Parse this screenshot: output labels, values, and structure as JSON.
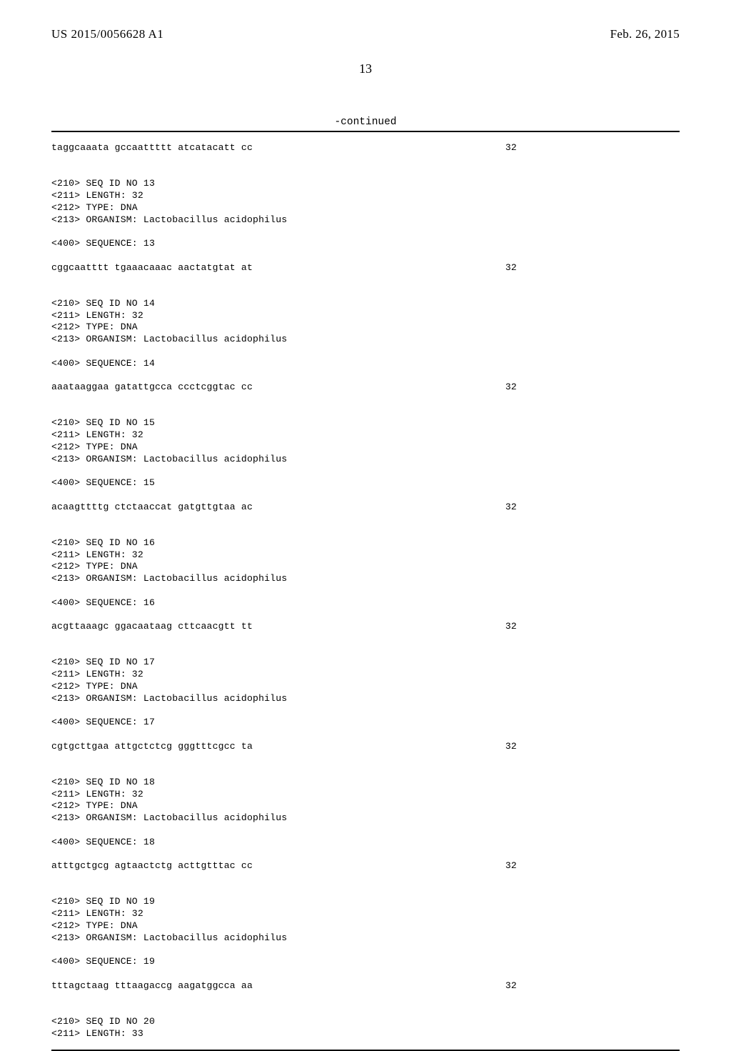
{
  "header": {
    "publication_number": "US 2015/0056628 A1",
    "publication_date": "Feb. 26, 2015"
  },
  "page_number": "13",
  "continued_label": "-continued",
  "entries": [
    {
      "pre_meta": [],
      "sequence": "taggcaaata gccaattttt atcatacatt cc",
      "length": "32"
    },
    {
      "pre_meta": [
        "<210> SEQ ID NO 13",
        "<211> LENGTH: 32",
        "<212> TYPE: DNA",
        "<213> ORGANISM: Lactobacillus acidophilus",
        "",
        "<400> SEQUENCE: 13"
      ],
      "sequence": "cggcaatttt tgaaacaaac aactatgtat at",
      "length": "32"
    },
    {
      "pre_meta": [
        "<210> SEQ ID NO 14",
        "<211> LENGTH: 32",
        "<212> TYPE: DNA",
        "<213> ORGANISM: Lactobacillus acidophilus",
        "",
        "<400> SEQUENCE: 14"
      ],
      "sequence": "aaataaggaa gatattgcca ccctcggtac cc",
      "length": "32"
    },
    {
      "pre_meta": [
        "<210> SEQ ID NO 15",
        "<211> LENGTH: 32",
        "<212> TYPE: DNA",
        "<213> ORGANISM: Lactobacillus acidophilus",
        "",
        "<400> SEQUENCE: 15"
      ],
      "sequence": "acaagttttg ctctaaccat gatgttgtaa ac",
      "length": "32"
    },
    {
      "pre_meta": [
        "<210> SEQ ID NO 16",
        "<211> LENGTH: 32",
        "<212> TYPE: DNA",
        "<213> ORGANISM: Lactobacillus acidophilus",
        "",
        "<400> SEQUENCE: 16"
      ],
      "sequence": "acgttaaagc ggacaataag cttcaacgtt tt",
      "length": "32"
    },
    {
      "pre_meta": [
        "<210> SEQ ID NO 17",
        "<211> LENGTH: 32",
        "<212> TYPE: DNA",
        "<213> ORGANISM: Lactobacillus acidophilus",
        "",
        "<400> SEQUENCE: 17"
      ],
      "sequence": "cgtgcttgaa attgctctcg gggtttcgcc ta",
      "length": "32"
    },
    {
      "pre_meta": [
        "<210> SEQ ID NO 18",
        "<211> LENGTH: 32",
        "<212> TYPE: DNA",
        "<213> ORGANISM: Lactobacillus acidophilus",
        "",
        "<400> SEQUENCE: 18"
      ],
      "sequence": "atttgctgcg agtaactctg acttgtttac cc",
      "length": "32"
    },
    {
      "pre_meta": [
        "<210> SEQ ID NO 19",
        "<211> LENGTH: 32",
        "<212> TYPE: DNA",
        "<213> ORGANISM: Lactobacillus acidophilus",
        "",
        "<400> SEQUENCE: 19"
      ],
      "sequence": "tttagctaag tttaagaccg aagatggcca aa",
      "length": "32"
    }
  ],
  "trailing_meta": [
    "<210> SEQ ID NO 20",
    "<211> LENGTH: 33"
  ]
}
